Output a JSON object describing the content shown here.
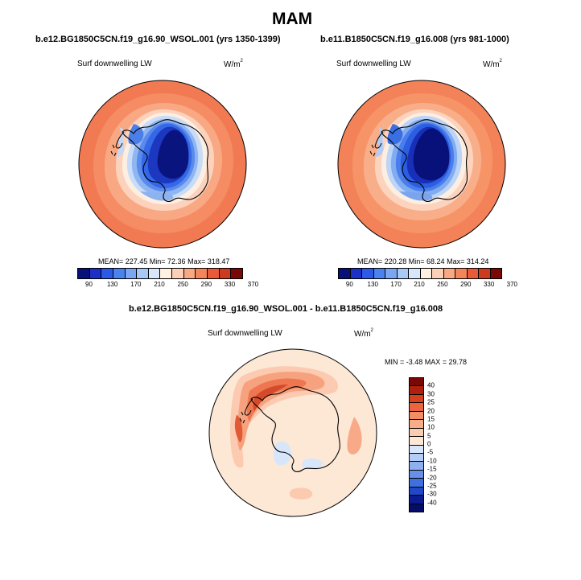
{
  "figure": {
    "season": "MAM"
  },
  "panel_left": {
    "case": "b.e12.BG1850C5CN.f19_g16.90_WSOL.001 (yrs 1350-1399)",
    "variable": "Surf downwelling LW",
    "units": "W/m",
    "units_exp": "2",
    "stats": "MEAN= 227.45  Min=  72.36  Max= 318.47"
  },
  "panel_right": {
    "case": "b.e11.B1850C5CN.f19_g16.008 (yrs 981-1000)",
    "variable": "Surf downwelling LW",
    "units": "W/m",
    "units_exp": "2",
    "stats": "MEAN= 220.28  Min=  68.24  Max= 314.24"
  },
  "panel_diff": {
    "case": "b.e12.BG1850C5CN.f19_g16.90_WSOL.001 - b.e11.B1850C5CN.f19_g16.008",
    "variable": "Surf downwelling LW",
    "units": "W/m",
    "units_exp": "2",
    "stats": "MIN =  -3.48 MAX =  29.78"
  },
  "colorbar_abs": {
    "labels": [
      "90",
      "130",
      "170",
      "210",
      "250",
      "290",
      "330",
      "370"
    ],
    "colors": [
      "#08107a",
      "#1c30c8",
      "#2c5ae6",
      "#4a82ee",
      "#7aa6f2",
      "#a8c8f6",
      "#d8e6fb",
      "#fff0e2",
      "#fcd0b8",
      "#f8a882",
      "#f4845a",
      "#e85a38",
      "#cc3a20",
      "#7a0806"
    ]
  },
  "colorbar_diff": {
    "labels": [
      "40",
      "30",
      "25",
      "20",
      "15",
      "10",
      "5",
      "0",
      "-5",
      "-10",
      "-15",
      "-20",
      "-25",
      "-30",
      "-40"
    ],
    "colors": [
      "#7a0806",
      "#b0200e",
      "#d6401e",
      "#ea6440",
      "#f48c64",
      "#f8ac88",
      "#fcccb0",
      "#fde8d6",
      "#d8e6fb",
      "#b4ccf6",
      "#8cb0f0",
      "#6890ea",
      "#4070e0",
      "#2048c8",
      "#0c1c90",
      "#060c6a"
    ]
  }
}
